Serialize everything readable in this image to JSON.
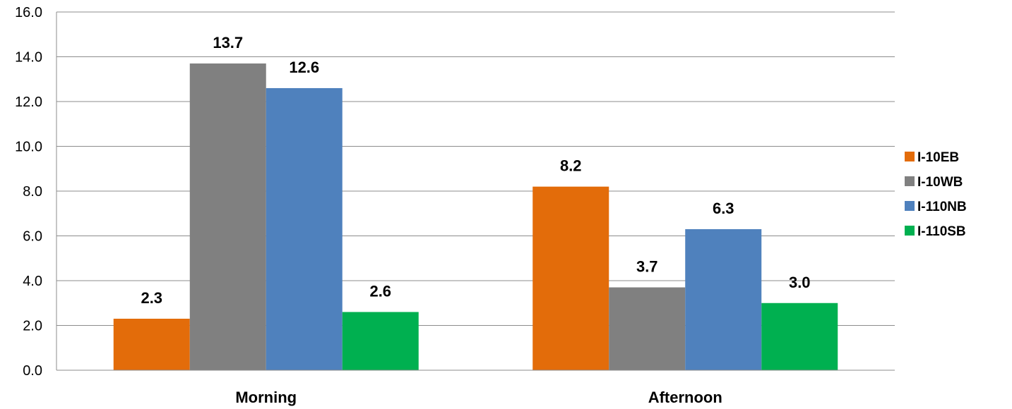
{
  "chart_data": {
    "type": "bar",
    "title": "",
    "xlabel": "",
    "ylabel": "",
    "categories": [
      "Morning",
      "Afternoon"
    ],
    "series": [
      {
        "name": "I-10EB",
        "color": "#E36C0A",
        "values": [
          2.3,
          8.2
        ]
      },
      {
        "name": "I-10WB",
        "color": "#808080",
        "values": [
          13.7,
          3.7
        ]
      },
      {
        "name": "I-110NB",
        "color": "#4F81BD",
        "values": [
          12.6,
          6.3
        ]
      },
      {
        "name": "I-110SB",
        "color": "#00B050",
        "values": [
          2.6,
          3.0
        ]
      }
    ],
    "ylim": [
      0,
      16
    ],
    "yticks": [
      "0.0",
      "2.0",
      "4.0",
      "6.0",
      "8.0",
      "10.0",
      "12.0",
      "14.0",
      "16.0"
    ],
    "data_labels": [
      [
        "2.3",
        "8.2"
      ],
      [
        "13.7",
        "3.7"
      ],
      [
        "12.6",
        "6.3"
      ],
      [
        "2.6",
        "3.0"
      ]
    ],
    "grid": true,
    "legend_position": "right"
  }
}
